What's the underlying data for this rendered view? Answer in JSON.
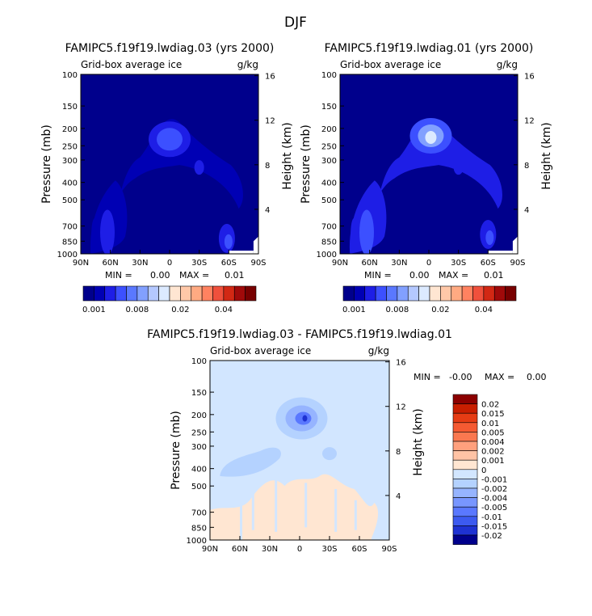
{
  "season_title": "DJF",
  "chart_data": [
    {
      "type": "heatmap",
      "id": "p1",
      "title": "FAMIPC5.f19f19.lwdiag.03 (yrs 2000)",
      "subtitle": "Grid-box average ice",
      "units": "g/kg",
      "xlabel": "",
      "ylabel": "Pressure (mb)",
      "y2label": "Height (km)",
      "x_ticks": [
        "90N",
        "60N",
        "30N",
        "0",
        "30S",
        "60S",
        "90S"
      ],
      "y_ticks": [
        "100",
        "150",
        "200",
        "250",
        "300",
        "400",
        "500",
        "700",
        "850",
        "1000"
      ],
      "y2_ticks": [
        "16",
        "12",
        "8",
        "4"
      ],
      "stats": {
        "min_label": "MIN =",
        "min": "0.00",
        "max_label": "MAX =",
        "max": "0.01"
      },
      "colorbar_labels": [
        "0.001",
        "0.008",
        "0.02",
        "0.04"
      ],
      "colors": [
        "#00008c",
        "#0000b4",
        "#1e1ee6",
        "#3c50ff",
        "#5a78ff",
        "#82a0ff",
        "#b4c8ff",
        "#dceaff",
        "#ffe6d2",
        "#ffc8a8",
        "#ffaa82",
        "#ff8260",
        "#f0503c",
        "#d22814",
        "#a00a0a",
        "#780000"
      ],
      "background_value": "0.001",
      "features": [
        {
          "name": "upper-tropical-max",
          "lat": 0,
          "p": 230,
          "level": 2
        },
        {
          "name": "tropical-arc",
          "lat": 30,
          "p": 350,
          "level": 1
        },
        {
          "name": "nh-midlat-column",
          "lat": 62,
          "p": 700,
          "level": 1
        },
        {
          "name": "nh-midlat-core",
          "lat": 65,
          "p": 780,
          "level": 2
        },
        {
          "name": "sh-midlat-low",
          "lat": -58,
          "p": 820,
          "level": 2
        }
      ]
    },
    {
      "type": "heatmap",
      "id": "p2",
      "title": "FAMIPC5.f19f19.lwdiag.01 (yrs 2000)",
      "subtitle": "Grid-box average ice",
      "units": "g/kg",
      "xlabel": "",
      "ylabel": "Pressure (mb)",
      "y2label": "Height (km)",
      "x_ticks": [
        "90N",
        "60N",
        "30N",
        "0",
        "30S",
        "60S",
        "90S"
      ],
      "y_ticks": [
        "100",
        "150",
        "200",
        "250",
        "300",
        "400",
        "500",
        "700",
        "850",
        "1000"
      ],
      "y2_ticks": [
        "16",
        "12",
        "8",
        "4"
      ],
      "stats": {
        "min_label": "MIN =",
        "min": "0.00",
        "max_label": "MAX =",
        "max": "0.01"
      },
      "colorbar_labels": [
        "0.001",
        "0.008",
        "0.02",
        "0.04"
      ],
      "colors": [
        "#00008c",
        "#0000b4",
        "#1e1ee6",
        "#3c50ff",
        "#5a78ff",
        "#82a0ff",
        "#b4c8ff",
        "#dceaff",
        "#ffe6d2",
        "#ffc8a8",
        "#ffaa82",
        "#ff8260",
        "#f0503c",
        "#d22814",
        "#a00a0a",
        "#780000"
      ],
      "background_value": "0.001",
      "features": [
        {
          "name": "upper-tropical-max",
          "lat": -2,
          "p": 220,
          "level": 4
        },
        {
          "name": "tropical-arc",
          "lat": 20,
          "p": 300,
          "level": 2
        },
        {
          "name": "nh-midlat-column",
          "lat": 65,
          "p": 650,
          "level": 2
        },
        {
          "name": "nh-midlat-core",
          "lat": 65,
          "p": 760,
          "level": 3
        },
        {
          "name": "sh-midlat-low",
          "lat": -60,
          "p": 780,
          "level": 2
        }
      ]
    },
    {
      "type": "heatmap",
      "id": "diff",
      "title": "FAMIPC5.f19f19.lwdiag.03 - FAMIPC5.f19f19.lwdiag.01",
      "subtitle": "Grid-box average ice",
      "units": "g/kg",
      "xlabel": "",
      "ylabel": "Pressure (mb)",
      "y2label": "Height (km)",
      "x_ticks": [
        "90N",
        "60N",
        "30N",
        "0",
        "30S",
        "60S",
        "90S"
      ],
      "y_ticks": [
        "100",
        "150",
        "200",
        "250",
        "300",
        "400",
        "500",
        "700",
        "850",
        "1000"
      ],
      "y2_ticks": [
        "16",
        "12",
        "8",
        "4"
      ],
      "stats": {
        "min_label": "MIN =",
        "min": "-0.00",
        "max_label": "MAX =",
        "max": "0.00"
      },
      "colorbar_labels": [
        "0.02",
        "0.015",
        "0.01",
        "0.005",
        "0.004",
        "0.002",
        "0.001",
        "0",
        "-0.001",
        "-0.002",
        "-0.004",
        "-0.005",
        "-0.01",
        "-0.015",
        "-0.02"
      ],
      "colors": [
        "#8c0000",
        "#c81e00",
        "#e63c14",
        "#f55a32",
        "#fa7850",
        "#ffa07d",
        "#ffc3a5",
        "#ffe6d2",
        "#d2e6ff",
        "#b4d2ff",
        "#96b4ff",
        "#7896ff",
        "#5a78ff",
        "#3c5af0",
        "#1e32d2",
        "#00008c"
      ],
      "features": [
        {
          "name": "upper-tropical-negative",
          "lat": -2,
          "p": 210,
          "value": -0.002
        },
        {
          "name": "midlat-negative",
          "lat": 45,
          "p": 370,
          "value": -0.001
        },
        {
          "name": "lower-positive",
          "lat": 10,
          "p": 750,
          "value": 0.001
        }
      ]
    }
  ]
}
